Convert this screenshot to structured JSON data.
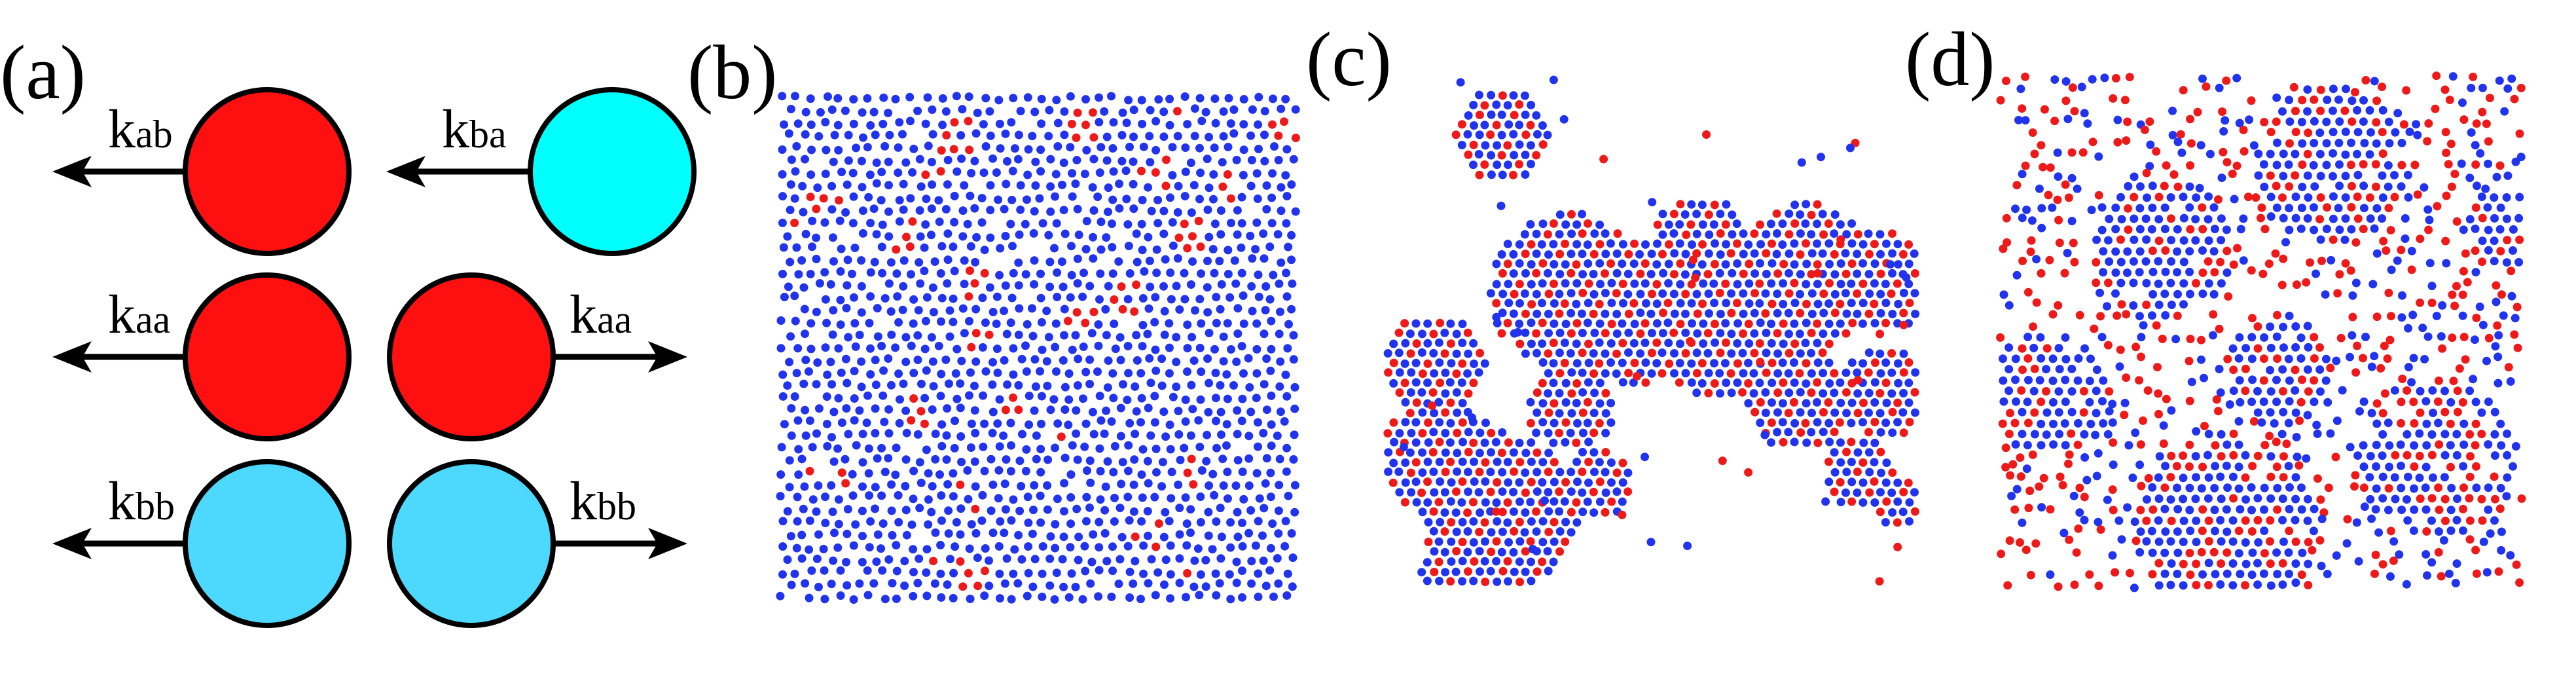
{
  "panels": {
    "a": {
      "label": "(a)"
    },
    "b": {
      "label": "(b)"
    },
    "c": {
      "label": "(c)"
    },
    "d": {
      "label": "(d)"
    }
  },
  "schematic": {
    "colors": {
      "type_a": "#ff1010",
      "type_b_left": "#00ffff",
      "type_b": "#4dd9ff",
      "outline": "#000000"
    },
    "rates": [
      {
        "k": "k",
        "sub": "ab",
        "row": 0,
        "side": "left",
        "particle": "a"
      },
      {
        "k": "k",
        "sub": "ba",
        "row": 0,
        "side": "right",
        "particle": "b"
      },
      {
        "k": "k",
        "sub": "aa",
        "row": 1,
        "side": "left",
        "particle": "a"
      },
      {
        "k": "k",
        "sub": "aa",
        "row": 1,
        "side": "right",
        "particle": "a"
      },
      {
        "k": "k",
        "sub": "bb",
        "row": 2,
        "side": "left",
        "particle": "b"
      },
      {
        "k": "k",
        "sub": "bb",
        "row": 2,
        "side": "right",
        "particle": "b"
      }
    ]
  },
  "snapshots": {
    "dot_colors": {
      "blue": "#2233ee",
      "red": "#ee1a1a"
    },
    "b": {
      "description_kind": "lattice",
      "red_fraction": 0.08
    },
    "c": {
      "description_kind": "clusters",
      "red_fraction": 0.3
    },
    "d": {
      "description_kind": "mixed",
      "red_fraction": 0.42
    }
  }
}
